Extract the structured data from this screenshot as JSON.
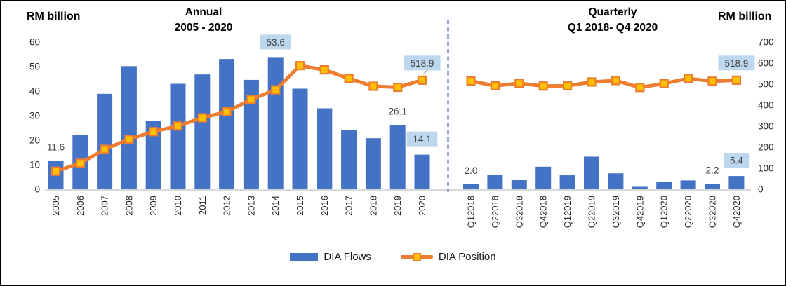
{
  "colors": {
    "bar": "#4472C4",
    "line": "#ED7D31",
    "marker_fill": "#FFC000",
    "label_box": "#BDD7EE",
    "divider": "#2F5597",
    "baseline": "#D9D9D9",
    "tick_text": "#262626",
    "annotation_text": "#404040"
  },
  "left_panel": {
    "axis_unit": "RM billion",
    "title1": "Annual",
    "title2": "2005 - 2020",
    "y_ticks": [
      60,
      50,
      40,
      30,
      20,
      10,
      0
    ],
    "y_range": [
      0,
      60
    ]
  },
  "right_panel": {
    "axis_unit": "RM billion",
    "title1": "Quarterly",
    "title2": "Q1 2018- Q4 2020",
    "y_ticks": [
      700,
      600,
      500,
      400,
      300,
      200,
      100,
      0
    ],
    "y_range": [
      0,
      700
    ]
  },
  "legend": {
    "flows": "DIA Flows",
    "position": "DIA Position"
  },
  "chart_data": [
    {
      "type": "bar",
      "panel": "annual",
      "name": "DIA Flows",
      "title": "Annual 2005 - 2020",
      "ylabel": "RM billion",
      "ylim": [
        0,
        60
      ],
      "categories": [
        "2005",
        "2006",
        "2007",
        "2008",
        "2009",
        "2010",
        "2011",
        "2012",
        "2013",
        "2014",
        "2015",
        "2016",
        "2017",
        "2018",
        "2019",
        "2020"
      ],
      "values": [
        11.6,
        22.2,
        38.9,
        50.2,
        27.8,
        43.0,
        46.8,
        53.1,
        44.6,
        53.6,
        41.0,
        33.0,
        24.0,
        20.8,
        26.1,
        14.1
      ]
    },
    {
      "type": "line",
      "panel": "annual",
      "name": "DIA Position",
      "title": "Annual 2005 - 2020",
      "ylabel": "RM billion",
      "ylim": [
        0,
        700
      ],
      "categories": [
        "2005",
        "2006",
        "2007",
        "2008",
        "2009",
        "2010",
        "2011",
        "2012",
        "2013",
        "2014",
        "2015",
        "2016",
        "2017",
        "2018",
        "2019",
        "2020"
      ],
      "values": [
        86,
        124,
        190,
        238,
        274,
        301,
        340,
        369,
        427,
        473,
        588,
        568,
        527,
        490,
        485,
        518.9
      ]
    },
    {
      "type": "bar",
      "panel": "quarterly",
      "name": "DIA Flows",
      "title": "Quarterly Q1 2018- Q4 2020",
      "ylabel": "RM billion",
      "ylim": [
        0,
        60
      ],
      "categories": [
        "Q12018",
        "Q22018",
        "Q32018",
        "Q42018",
        "Q12019",
        "Q22019",
        "Q32019",
        "Q42019",
        "Q12020",
        "Q22020",
        "Q32020",
        "Q42020"
      ],
      "values": [
        2.0,
        5.9,
        3.7,
        9.2,
        5.7,
        13.3,
        6.5,
        1.0,
        3.0,
        3.6,
        2.2,
        5.4
      ]
    },
    {
      "type": "line",
      "panel": "quarterly",
      "name": "DIA Position",
      "title": "Quarterly Q1 2018- Q4 2020",
      "ylabel": "RM billion",
      "ylim": [
        0,
        700
      ],
      "categories": [
        "Q12018",
        "Q22018",
        "Q32018",
        "Q42018",
        "Q12019",
        "Q22019",
        "Q32019",
        "Q42019",
        "Q12020",
        "Q22020",
        "Q32020",
        "Q42020"
      ],
      "values": [
        515,
        492,
        504,
        491,
        492,
        510,
        517,
        484,
        503,
        527,
        514,
        518.9
      ]
    }
  ],
  "annotations": [
    {
      "panel": "annual",
      "series": "bar",
      "index": 0,
      "text": "11.6",
      "boxed": false
    },
    {
      "panel": "annual",
      "series": "bar",
      "index": 9,
      "text": "53.6",
      "boxed": true
    },
    {
      "panel": "annual",
      "series": "bar",
      "index": 14,
      "text": "26.1",
      "boxed": false
    },
    {
      "panel": "annual",
      "series": "bar",
      "index": 15,
      "text": "14.1",
      "boxed": true
    },
    {
      "panel": "annual",
      "series": "line",
      "index": 15,
      "text": "518.9",
      "boxed": true,
      "leader": true
    },
    {
      "panel": "quarterly",
      "series": "bar",
      "index": 0,
      "text": "2.0",
      "boxed": false
    },
    {
      "panel": "quarterly",
      "series": "bar",
      "index": 10,
      "text": "2.2",
      "boxed": false
    },
    {
      "panel": "quarterly",
      "series": "bar",
      "index": 11,
      "text": "5.4",
      "boxed": true
    },
    {
      "panel": "quarterly",
      "series": "line",
      "index": 11,
      "text": "518.9",
      "boxed": true
    }
  ]
}
